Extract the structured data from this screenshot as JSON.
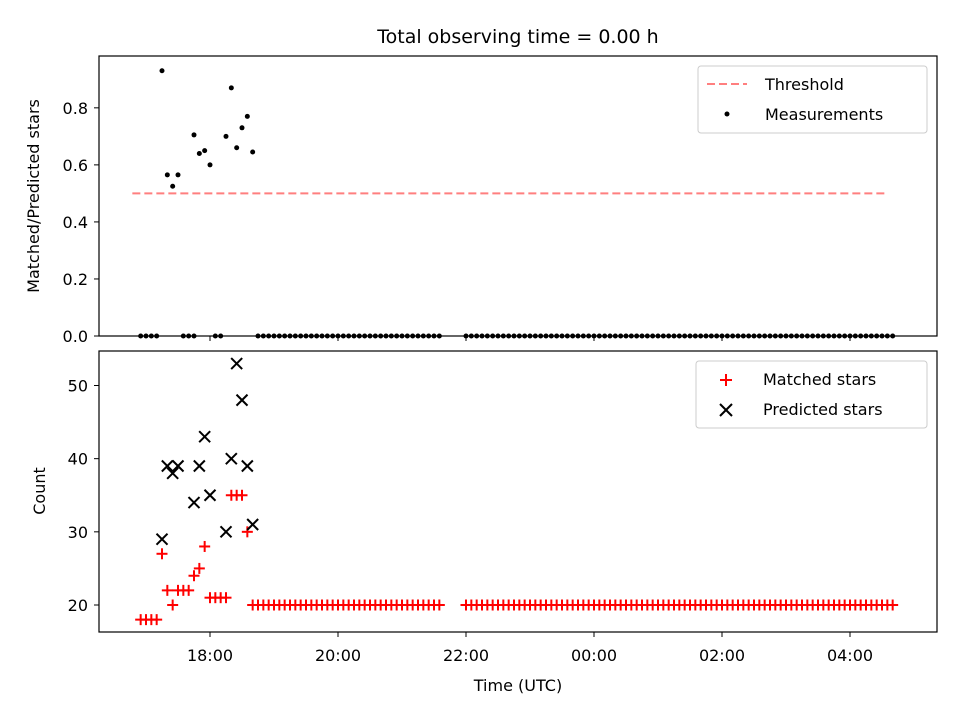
{
  "chart_data": [
    {
      "type": "scatter",
      "title": "Total observing time = 0.00 h",
      "xlabel": "",
      "ylabel": "Matched/Predicted stars",
      "ylim": [
        0,
        0.98
      ],
      "yticks": [
        "0.0",
        "0.2",
        "0.4",
        "0.6",
        "0.8"
      ],
      "legend_position": "top-right",
      "threshold": {
        "name": "Threshold",
        "value": 0.5,
        "color": "#ff7f7f",
        "x_range": [
          "16:50",
          "04:40"
        ]
      },
      "measurements": {
        "name": "Measurements",
        "color": "#000000",
        "points": [
          [
            "17:15",
            0.93
          ],
          [
            "17:20",
            0.565
          ],
          [
            "17:25",
            0.525
          ],
          [
            "17:30",
            0.565
          ],
          [
            "17:45",
            0.705
          ],
          [
            "17:50",
            0.64
          ],
          [
            "17:55",
            0.65
          ],
          [
            "18:00",
            0.6
          ],
          [
            "18:15",
            0.7
          ],
          [
            "18:20",
            0.87
          ],
          [
            "18:25",
            0.66
          ],
          [
            "18:30",
            0.73
          ],
          [
            "18:35",
            0.77
          ],
          [
            "18:40",
            0.645
          ]
        ],
        "zero_times_note_ranges": [
          [
            "16:55",
            "17:10"
          ],
          [
            "17:35",
            "17:45"
          ],
          [
            "18:05",
            "18:10"
          ],
          [
            "18:45",
            "21:35"
          ],
          [
            "22:00",
            "04:40"
          ]
        ]
      },
      "grid": false
    },
    {
      "type": "scatter",
      "xlabel": "Time (UTC)",
      "ylabel": "Count",
      "ylim": [
        16,
        55
      ],
      "yticks": [
        "20",
        "30",
        "40",
        "50"
      ],
      "xticks": [
        "18:00",
        "20:00",
        "22:00",
        "00:00",
        "02:00",
        "04:00"
      ],
      "legend_position": "top-right",
      "series": [
        {
          "name": "Matched stars",
          "marker": "+",
          "color": "#ff0000",
          "points": [
            [
              "16:55",
              18
            ],
            [
              "17:00",
              18
            ],
            [
              "17:05",
              18
            ],
            [
              "17:10",
              18
            ],
            [
              "17:15",
              27
            ],
            [
              "17:20",
              22
            ],
            [
              "17:25",
              20
            ],
            [
              "17:30",
              22
            ],
            [
              "17:35",
              22
            ],
            [
              "17:40",
              22
            ],
            [
              "17:45",
              24
            ],
            [
              "17:50",
              25
            ],
            [
              "17:55",
              28
            ],
            [
              "18:00",
              21
            ],
            [
              "18:05",
              21
            ],
            [
              "18:10",
              21
            ],
            [
              "18:15",
              21
            ],
            [
              "18:20",
              35
            ],
            [
              "18:25",
              35
            ],
            [
              "18:30",
              35
            ],
            [
              "18:35",
              30
            ],
            [
              "18:40",
              20
            ]
          ],
          "constant_tail": {
            "value": 20,
            "ranges": [
              [
                "18:45",
                "21:35"
              ],
              [
                "22:00",
                "04:40"
              ]
            ],
            "step_minutes": 5
          }
        },
        {
          "name": "Predicted stars",
          "marker": "x",
          "color": "#000000",
          "points": [
            [
              "17:15",
              29
            ],
            [
              "17:20",
              39
            ],
            [
              "17:25",
              38
            ],
            [
              "17:30",
              39
            ],
            [
              "17:45",
              34
            ],
            [
              "17:50",
              39
            ],
            [
              "17:55",
              43
            ],
            [
              "18:00",
              35
            ],
            [
              "18:15",
              30
            ],
            [
              "18:20",
              40
            ],
            [
              "18:25",
              53
            ],
            [
              "18:30",
              48
            ],
            [
              "18:35",
              39
            ],
            [
              "18:40",
              31
            ]
          ]
        }
      ],
      "grid": false
    }
  ]
}
